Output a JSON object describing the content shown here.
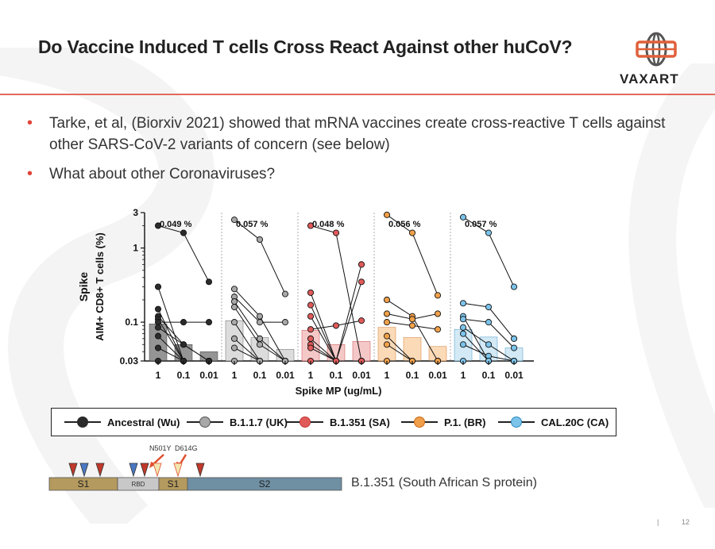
{
  "slide": {
    "title": "Do Vaccine Induced T cells Cross React Against other huCoV?",
    "logo_text": "VAXART",
    "page_number": "12",
    "footer_separator": "|"
  },
  "bullets": [
    "Tarke, et al, (Biorxiv 2021) showed that mRNA vaccines create cross-reactive T cells against other SARS-CoV-2 variants of concern (see below)",
    "What about other Coronaviruses?"
  ],
  "chart_data": {
    "type": "scatter",
    "ylabel_line1": "Spike",
    "ylabel_line2": "AIM+ CD8+ T cells (%)",
    "xlabel": "Spike MP (ug/mL)",
    "yscale": "log",
    "ylim": [
      0.03,
      3
    ],
    "yticks": [
      "3",
      "1",
      "0.1",
      "0.03"
    ],
    "x_categories": [
      "1",
      "0.1",
      "0.01"
    ],
    "grid": false,
    "legend_position": "bottom",
    "panels": [
      {
        "name": "Ancestral (Wu)",
        "label": "0.049 %",
        "color": "#2b2b2b",
        "fill": "#8a8a8a",
        "bars": [
          0.095,
          0.05,
          0.04
        ],
        "donors": [
          [
            2.0,
            1.6,
            0.35
          ],
          [
            0.3,
            0.03,
            0.03
          ],
          [
            0.15,
            0.03,
            0.03
          ],
          [
            0.12,
            0.05,
            0.03
          ],
          [
            0.11,
            0.03,
            0.03
          ],
          [
            0.1,
            0.1,
            0.1
          ],
          [
            0.085,
            0.05,
            0.03
          ],
          [
            0.065,
            0.03,
            0.03
          ],
          [
            0.045,
            0.03,
            0.03
          ],
          [
            0.03,
            0.03,
            0.03
          ]
        ]
      },
      {
        "name": "B.1.1.7 (UK)",
        "label": "0.057 %",
        "color": "#555555",
        "fill": "#d9d9d9",
        "bars": [
          0.105,
          0.062,
          0.043
        ],
        "donors": [
          [
            2.4,
            1.3,
            0.24
          ],
          [
            0.28,
            0.12,
            0.03
          ],
          [
            0.22,
            0.1,
            0.1
          ],
          [
            0.19,
            0.06,
            0.03
          ],
          [
            0.16,
            0.05,
            0.03
          ],
          [
            0.1,
            0.03,
            0.03
          ],
          [
            0.06,
            0.03,
            0.03
          ],
          [
            0.045,
            0.03,
            0.03
          ],
          [
            0.03,
            0.03,
            0.03
          ]
        ]
      },
      {
        "name": "B.1.351 (SA)",
        "label": "0.048 %",
        "color": "#c23a3a",
        "fill": "#f4c3c3",
        "bars": [
          0.078,
          0.05,
          0.055
        ],
        "donors": [
          [
            2.0,
            1.6,
            0.03
          ],
          [
            0.25,
            0.03,
            0.6
          ],
          [
            0.17,
            0.03,
            0.35
          ],
          [
            0.12,
            0.03,
            0.03
          ],
          [
            0.08,
            0.09,
            0.105
          ],
          [
            0.06,
            0.03,
            0.03
          ],
          [
            0.05,
            0.03,
            0.03
          ],
          [
            0.045,
            0.03,
            0.03
          ],
          [
            0.03,
            0.03,
            0.03
          ]
        ]
      },
      {
        "name": "P.1. (BR)",
        "label": "0.056 %",
        "color": "#c96a1a",
        "fill": "#fbd6b0",
        "bars": [
          0.085,
          0.062,
          0.047
        ],
        "donors": [
          [
            2.8,
            1.6,
            0.23
          ],
          [
            0.2,
            0.12,
            0.03
          ],
          [
            0.13,
            0.11,
            0.13
          ],
          [
            0.1,
            0.09,
            0.08
          ],
          [
            0.065,
            0.03,
            0.03
          ],
          [
            0.05,
            0.03,
            0.03
          ],
          [
            0.03,
            0.03,
            0.03
          ]
        ]
      },
      {
        "name": "CAL.20C (CA)",
        "label": "0.057 %",
        "color": "#2f8bbf",
        "fill": "#cfe7f5",
        "bars": [
          0.08,
          0.063,
          0.045
        ],
        "donors": [
          [
            2.6,
            1.6,
            0.3
          ],
          [
            0.18,
            0.16,
            0.06
          ],
          [
            0.12,
            0.03,
            0.03
          ],
          [
            0.11,
            0.1,
            0.045
          ],
          [
            0.085,
            0.05,
            0.03
          ],
          [
            0.07,
            0.03,
            0.03
          ],
          [
            0.05,
            0.035,
            0.03
          ],
          [
            0.03,
            0.03,
            0.03
          ]
        ]
      }
    ]
  },
  "legend": [
    {
      "label": "Ancestral (Wu)",
      "color": "#2b2b2b",
      "fill": "#2b2b2b"
    },
    {
      "label": "B.1.1.7 (UK)",
      "color": "#555555",
      "fill": "#a8a8a8"
    },
    {
      "label": "B.1.351 (SA)",
      "color": "#c23a3a",
      "fill": "#e05a5a"
    },
    {
      "label": "P.1. (BR)",
      "color": "#c96a1a",
      "fill": "#f0a04a"
    },
    {
      "label": "CAL.20C (CA)",
      "color": "#2f8bbf",
      "fill": "#7cc3ea"
    }
  ],
  "protein": {
    "segments": [
      "S1",
      "RBD",
      "S1",
      "S2"
    ],
    "mutation_labels": [
      "N501Y",
      "D614G"
    ],
    "caption": "B.1.351 (South African S protein)",
    "colors": {
      "s1": "#b49a5e",
      "rbd": "#c8c8c8",
      "s2": "#6f8fa3",
      "marker_red": "#c0392b",
      "marker_blue": "#4a78c2",
      "arrow": "#e05030"
    }
  }
}
